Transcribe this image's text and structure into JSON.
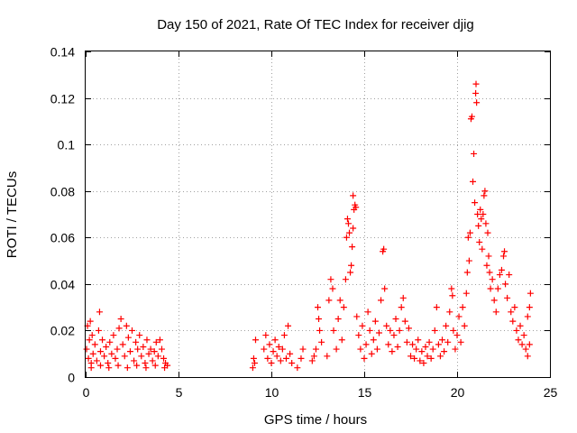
{
  "chart_data": {
    "type": "scatter",
    "title": "Day 150 of 2021, Rate Of TEC Index for receiver djig",
    "xlabel": "GPS time / hours",
    "ylabel": "ROTI / TECUs",
    "xlim": [
      0,
      25
    ],
    "ylim": [
      0,
      0.14
    ],
    "xticks": [
      0,
      5,
      10,
      15,
      20,
      25
    ],
    "yticks": [
      0,
      0.02,
      0.04,
      0.06,
      0.08,
      0.1,
      0.12,
      0.14
    ],
    "xtick_labels": [
      "0",
      "5",
      "10",
      "15",
      "20",
      "25"
    ],
    "ytick_labels": [
      "0",
      "0.02",
      "0.04",
      "0.06",
      "0.08",
      "0.1",
      "0.12",
      "0.14"
    ],
    "grid": true,
    "marker": "+",
    "marker_color": "#ff0000",
    "series": [
      {
        "name": "ROTI",
        "points": [
          [
            0.05,
            0.012
          ],
          [
            0.1,
            0.022
          ],
          [
            0.15,
            0.008
          ],
          [
            0.2,
            0.016
          ],
          [
            0.25,
            0.024
          ],
          [
            0.3,
            0.006
          ],
          [
            0.35,
            0.018
          ],
          [
            0.4,
            0.01
          ],
          [
            0.5,
            0.014
          ],
          [
            0.6,
            0.007
          ],
          [
            0.7,
            0.02
          ],
          [
            0.75,
            0.028
          ],
          [
            0.8,
            0.011
          ],
          [
            0.9,
            0.016
          ],
          [
            1.0,
            0.009
          ],
          [
            1.1,
            0.013
          ],
          [
            1.2,
            0.006
          ],
          [
            1.3,
            0.015
          ],
          [
            1.4,
            0.01
          ],
          [
            1.5,
            0.018
          ],
          [
            1.6,
            0.008
          ],
          [
            1.7,
            0.012
          ],
          [
            1.8,
            0.021
          ],
          [
            1.9,
            0.025
          ],
          [
            2.0,
            0.014
          ],
          [
            2.1,
            0.009
          ],
          [
            2.2,
            0.022
          ],
          [
            2.3,
            0.017
          ],
          [
            2.4,
            0.011
          ],
          [
            2.5,
            0.02
          ],
          [
            2.6,
            0.007
          ],
          [
            2.7,
            0.015
          ],
          [
            2.8,
            0.012
          ],
          [
            2.9,
            0.018
          ],
          [
            3.0,
            0.009
          ],
          [
            3.1,
            0.013
          ],
          [
            3.2,
            0.006
          ],
          [
            3.3,
            0.016
          ],
          [
            3.4,
            0.01
          ],
          [
            3.5,
            0.012
          ],
          [
            3.6,
            0.007
          ],
          [
            3.7,
            0.011
          ],
          [
            3.8,
            0.015
          ],
          [
            3.9,
            0.009
          ],
          [
            4.0,
            0.016
          ],
          [
            4.1,
            0.012
          ],
          [
            4.2,
            0.008
          ],
          [
            4.3,
            0.006
          ],
          [
            4.4,
            0.005
          ],
          [
            0.3,
            0.004
          ],
          [
            0.8,
            0.005
          ],
          [
            1.25,
            0.004
          ],
          [
            1.75,
            0.005
          ],
          [
            2.25,
            0.004
          ],
          [
            2.75,
            0.005
          ],
          [
            3.25,
            0.004
          ],
          [
            3.75,
            0.005
          ],
          [
            4.25,
            0.004
          ],
          [
            9.0,
            0.004
          ],
          [
            9.05,
            0.008
          ],
          [
            9.1,
            0.006
          ],
          [
            9.15,
            0.016
          ],
          [
            9.6,
            0.012
          ],
          [
            9.7,
            0.018
          ],
          [
            9.8,
            0.008
          ],
          [
            9.9,
            0.014
          ],
          [
            10.0,
            0.006
          ],
          [
            10.1,
            0.011
          ],
          [
            10.2,
            0.016
          ],
          [
            10.3,
            0.009
          ],
          [
            10.4,
            0.013
          ],
          [
            10.5,
            0.007
          ],
          [
            10.6,
            0.012
          ],
          [
            10.7,
            0.018
          ],
          [
            10.8,
            0.008
          ],
          [
            10.9,
            0.022
          ],
          [
            11.0,
            0.01
          ],
          [
            11.1,
            0.006
          ],
          [
            11.4,
            0.004
          ],
          [
            11.6,
            0.008
          ],
          [
            11.7,
            0.012
          ],
          [
            12.2,
            0.007
          ],
          [
            12.3,
            0.009
          ],
          [
            12.4,
            0.012
          ],
          [
            12.5,
            0.03
          ],
          [
            12.55,
            0.025
          ],
          [
            12.6,
            0.02
          ],
          [
            12.7,
            0.015
          ],
          [
            13.0,
            0.009
          ],
          [
            13.1,
            0.033
          ],
          [
            13.2,
            0.042
          ],
          [
            13.3,
            0.038
          ],
          [
            13.35,
            0.02
          ],
          [
            13.5,
            0.012
          ],
          [
            13.6,
            0.025
          ],
          [
            13.7,
            0.033
          ],
          [
            13.8,
            0.016
          ],
          [
            13.9,
            0.03
          ],
          [
            14.0,
            0.042
          ],
          [
            14.05,
            0.06
          ],
          [
            14.1,
            0.068
          ],
          [
            14.15,
            0.066
          ],
          [
            14.2,
            0.062
          ],
          [
            14.25,
            0.045
          ],
          [
            14.3,
            0.048
          ],
          [
            14.35,
            0.056
          ],
          [
            14.4,
            0.064
          ],
          [
            14.45,
            0.072
          ],
          [
            14.5,
            0.074
          ],
          [
            14.55,
            0.073
          ],
          [
            14.4,
            0.078
          ],
          [
            14.6,
            0.026
          ],
          [
            14.7,
            0.018
          ],
          [
            14.8,
            0.012
          ],
          [
            14.9,
            0.022
          ],
          [
            15.0,
            0.008
          ],
          [
            15.1,
            0.014
          ],
          [
            15.2,
            0.028
          ],
          [
            15.3,
            0.02
          ],
          [
            15.4,
            0.01
          ],
          [
            15.5,
            0.016
          ],
          [
            15.6,
            0.024
          ],
          [
            15.7,
            0.012
          ],
          [
            15.8,
            0.019
          ],
          [
            15.9,
            0.033
          ],
          [
            16.0,
            0.054
          ],
          [
            16.05,
            0.055
          ],
          [
            16.1,
            0.038
          ],
          [
            16.2,
            0.022
          ],
          [
            16.3,
            0.014
          ],
          [
            16.4,
            0.02
          ],
          [
            16.5,
            0.011
          ],
          [
            16.6,
            0.018
          ],
          [
            16.7,
            0.025
          ],
          [
            16.8,
            0.013
          ],
          [
            16.9,
            0.02
          ],
          [
            17.0,
            0.03
          ],
          [
            17.1,
            0.034
          ],
          [
            17.2,
            0.024
          ],
          [
            17.3,
            0.015
          ],
          [
            17.4,
            0.021
          ],
          [
            17.5,
            0.009
          ],
          [
            17.6,
            0.014
          ],
          [
            17.7,
            0.008
          ],
          [
            17.8,
            0.012
          ],
          [
            17.9,
            0.016
          ],
          [
            18.0,
            0.007
          ],
          [
            18.1,
            0.011
          ],
          [
            18.2,
            0.006
          ],
          [
            18.3,
            0.013
          ],
          [
            18.4,
            0.009
          ],
          [
            18.5,
            0.015
          ],
          [
            18.6,
            0.008
          ],
          [
            18.7,
            0.012
          ],
          [
            18.8,
            0.02
          ],
          [
            18.9,
            0.03
          ],
          [
            19.0,
            0.014
          ],
          [
            19.1,
            0.009
          ],
          [
            19.2,
            0.016
          ],
          [
            19.3,
            0.011
          ],
          [
            19.4,
            0.022
          ],
          [
            19.5,
            0.015
          ],
          [
            19.6,
            0.028
          ],
          [
            19.7,
            0.038
          ],
          [
            19.75,
            0.035
          ],
          [
            19.8,
            0.02
          ],
          [
            19.9,
            0.012
          ],
          [
            20.0,
            0.018
          ],
          [
            20.1,
            0.026
          ],
          [
            20.2,
            0.015
          ],
          [
            20.3,
            0.03
          ],
          [
            20.4,
            0.022
          ],
          [
            20.5,
            0.036
          ],
          [
            20.55,
            0.045
          ],
          [
            20.6,
            0.06
          ],
          [
            20.65,
            0.05
          ],
          [
            20.7,
            0.062
          ],
          [
            20.75,
            0.111
          ],
          [
            20.8,
            0.112
          ],
          [
            20.85,
            0.084
          ],
          [
            20.9,
            0.096
          ],
          [
            20.95,
            0.075
          ],
          [
            21.0,
            0.122
          ],
          [
            21.02,
            0.126
          ],
          [
            21.05,
            0.118
          ],
          [
            21.1,
            0.07
          ],
          [
            21.15,
            0.065
          ],
          [
            21.2,
            0.058
          ],
          [
            21.25,
            0.072
          ],
          [
            21.3,
            0.068
          ],
          [
            21.35,
            0.055
          ],
          [
            21.4,
            0.07
          ],
          [
            21.45,
            0.078
          ],
          [
            21.5,
            0.08
          ],
          [
            21.55,
            0.066
          ],
          [
            21.6,
            0.048
          ],
          [
            21.65,
            0.062
          ],
          [
            21.7,
            0.052
          ],
          [
            21.75,
            0.045
          ],
          [
            21.8,
            0.038
          ],
          [
            21.9,
            0.042
          ],
          [
            22.0,
            0.033
          ],
          [
            22.1,
            0.028
          ],
          [
            22.2,
            0.038
          ],
          [
            22.3,
            0.044
          ],
          [
            22.4,
            0.046
          ],
          [
            22.5,
            0.052
          ],
          [
            22.55,
            0.054
          ],
          [
            22.6,
            0.04
          ],
          [
            22.7,
            0.034
          ],
          [
            22.8,
            0.044
          ],
          [
            22.9,
            0.028
          ],
          [
            23.0,
            0.024
          ],
          [
            23.1,
            0.03
          ],
          [
            23.2,
            0.02
          ],
          [
            23.3,
            0.016
          ],
          [
            23.4,
            0.022
          ],
          [
            23.5,
            0.014
          ],
          [
            23.6,
            0.018
          ],
          [
            23.7,
            0.012
          ],
          [
            23.8,
            0.026
          ],
          [
            23.9,
            0.03
          ],
          [
            23.95,
            0.036
          ],
          [
            23.9,
            0.014
          ],
          [
            23.8,
            0.009
          ]
        ]
      }
    ]
  }
}
